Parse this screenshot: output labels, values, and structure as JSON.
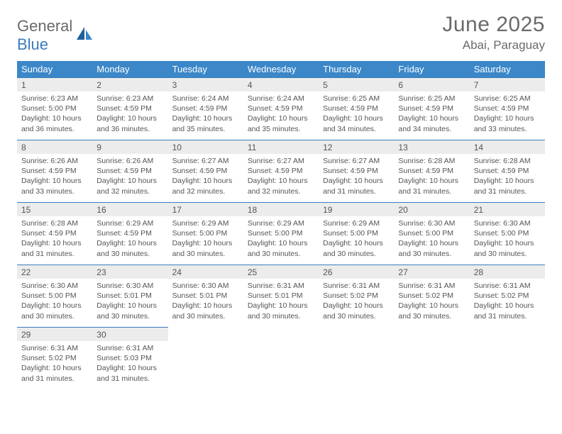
{
  "logo": {
    "word1": "General",
    "word2": "Blue"
  },
  "title": "June 2025",
  "location": "Abai, Paraguay",
  "colors": {
    "header_bg": "#3b87c8",
    "header_text": "#ffffff",
    "accent_blue": "#3b7bbf",
    "daynum_bg": "#ececec",
    "text": "#555555",
    "logo_gray": "#6a6a6a"
  },
  "daysOfWeek": [
    "Sunday",
    "Monday",
    "Tuesday",
    "Wednesday",
    "Thursday",
    "Friday",
    "Saturday"
  ],
  "weeks": [
    [
      {
        "n": "1",
        "sr": "6:23 AM",
        "ss": "5:00 PM",
        "dl": "10 hours and 36 minutes."
      },
      {
        "n": "2",
        "sr": "6:23 AM",
        "ss": "4:59 PM",
        "dl": "10 hours and 36 minutes."
      },
      {
        "n": "3",
        "sr": "6:24 AM",
        "ss": "4:59 PM",
        "dl": "10 hours and 35 minutes."
      },
      {
        "n": "4",
        "sr": "6:24 AM",
        "ss": "4:59 PM",
        "dl": "10 hours and 35 minutes."
      },
      {
        "n": "5",
        "sr": "6:25 AM",
        "ss": "4:59 PM",
        "dl": "10 hours and 34 minutes."
      },
      {
        "n": "6",
        "sr": "6:25 AM",
        "ss": "4:59 PM",
        "dl": "10 hours and 34 minutes."
      },
      {
        "n": "7",
        "sr": "6:25 AM",
        "ss": "4:59 PM",
        "dl": "10 hours and 33 minutes."
      }
    ],
    [
      {
        "n": "8",
        "sr": "6:26 AM",
        "ss": "4:59 PM",
        "dl": "10 hours and 33 minutes."
      },
      {
        "n": "9",
        "sr": "6:26 AM",
        "ss": "4:59 PM",
        "dl": "10 hours and 32 minutes."
      },
      {
        "n": "10",
        "sr": "6:27 AM",
        "ss": "4:59 PM",
        "dl": "10 hours and 32 minutes."
      },
      {
        "n": "11",
        "sr": "6:27 AM",
        "ss": "4:59 PM",
        "dl": "10 hours and 32 minutes."
      },
      {
        "n": "12",
        "sr": "6:27 AM",
        "ss": "4:59 PM",
        "dl": "10 hours and 31 minutes."
      },
      {
        "n": "13",
        "sr": "6:28 AM",
        "ss": "4:59 PM",
        "dl": "10 hours and 31 minutes."
      },
      {
        "n": "14",
        "sr": "6:28 AM",
        "ss": "4:59 PM",
        "dl": "10 hours and 31 minutes."
      }
    ],
    [
      {
        "n": "15",
        "sr": "6:28 AM",
        "ss": "4:59 PM",
        "dl": "10 hours and 31 minutes."
      },
      {
        "n": "16",
        "sr": "6:29 AM",
        "ss": "4:59 PM",
        "dl": "10 hours and 30 minutes."
      },
      {
        "n": "17",
        "sr": "6:29 AM",
        "ss": "5:00 PM",
        "dl": "10 hours and 30 minutes."
      },
      {
        "n": "18",
        "sr": "6:29 AM",
        "ss": "5:00 PM",
        "dl": "10 hours and 30 minutes."
      },
      {
        "n": "19",
        "sr": "6:29 AM",
        "ss": "5:00 PM",
        "dl": "10 hours and 30 minutes."
      },
      {
        "n": "20",
        "sr": "6:30 AM",
        "ss": "5:00 PM",
        "dl": "10 hours and 30 minutes."
      },
      {
        "n": "21",
        "sr": "6:30 AM",
        "ss": "5:00 PM",
        "dl": "10 hours and 30 minutes."
      }
    ],
    [
      {
        "n": "22",
        "sr": "6:30 AM",
        "ss": "5:00 PM",
        "dl": "10 hours and 30 minutes."
      },
      {
        "n": "23",
        "sr": "6:30 AM",
        "ss": "5:01 PM",
        "dl": "10 hours and 30 minutes."
      },
      {
        "n": "24",
        "sr": "6:30 AM",
        "ss": "5:01 PM",
        "dl": "10 hours and 30 minutes."
      },
      {
        "n": "25",
        "sr": "6:31 AM",
        "ss": "5:01 PM",
        "dl": "10 hours and 30 minutes."
      },
      {
        "n": "26",
        "sr": "6:31 AM",
        "ss": "5:02 PM",
        "dl": "10 hours and 30 minutes."
      },
      {
        "n": "27",
        "sr": "6:31 AM",
        "ss": "5:02 PM",
        "dl": "10 hours and 30 minutes."
      },
      {
        "n": "28",
        "sr": "6:31 AM",
        "ss": "5:02 PM",
        "dl": "10 hours and 31 minutes."
      }
    ],
    [
      {
        "n": "29",
        "sr": "6:31 AM",
        "ss": "5:02 PM",
        "dl": "10 hours and 31 minutes."
      },
      {
        "n": "30",
        "sr": "6:31 AM",
        "ss": "5:03 PM",
        "dl": "10 hours and 31 minutes."
      },
      null,
      null,
      null,
      null,
      null
    ]
  ],
  "labels": {
    "sunrise": "Sunrise: ",
    "sunset": "Sunset: ",
    "daylight": "Daylight: "
  }
}
